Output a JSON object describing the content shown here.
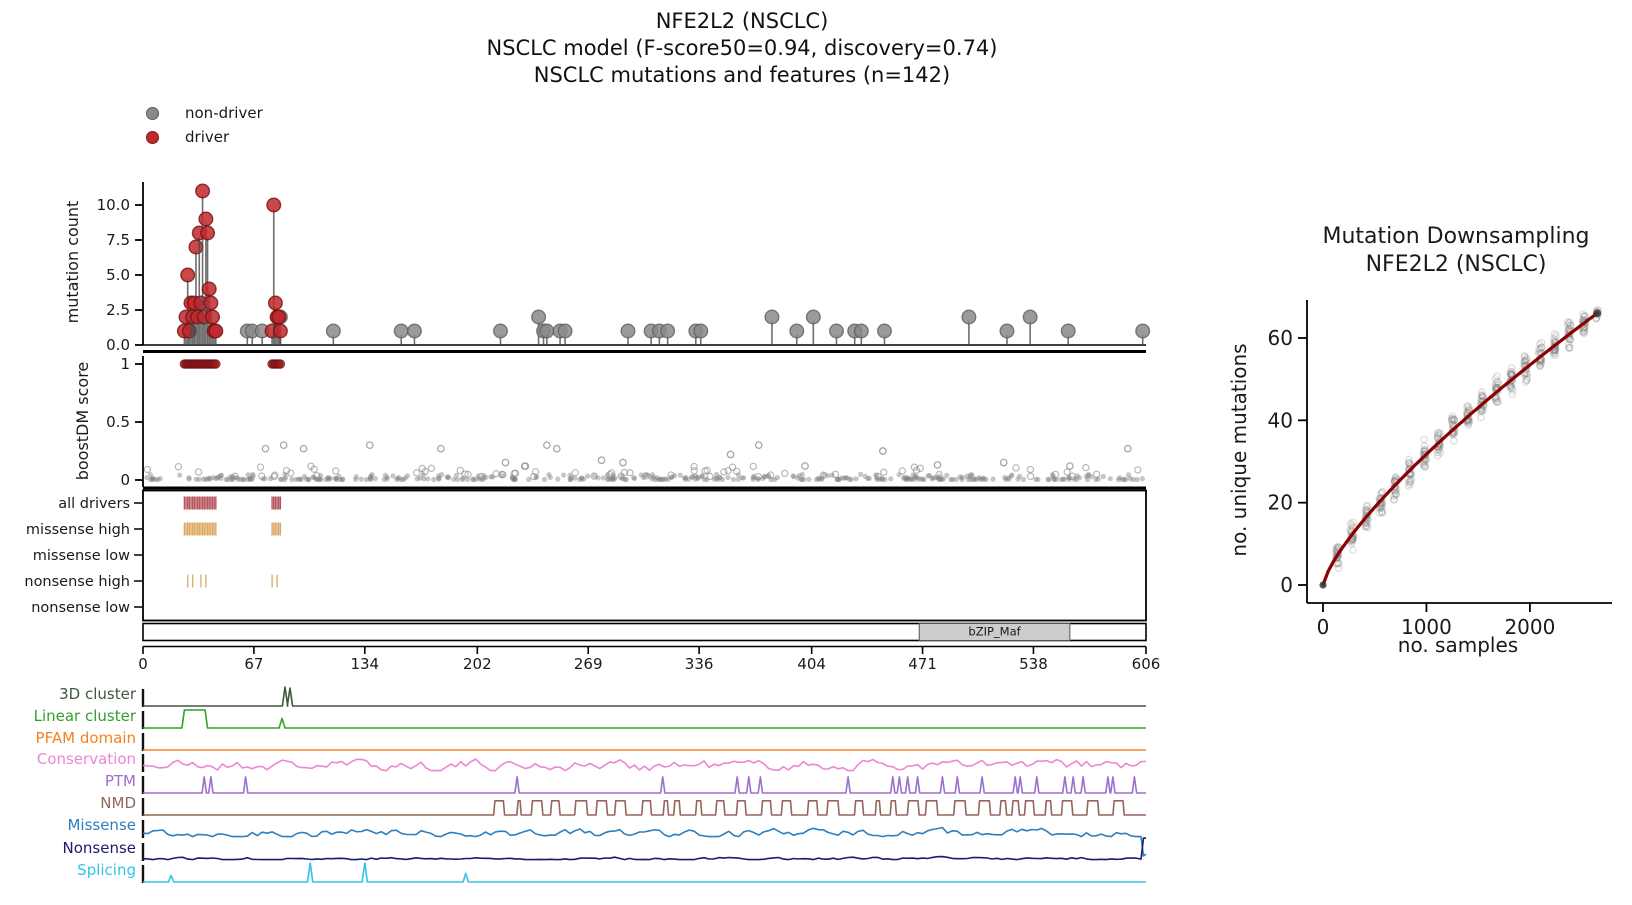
{
  "title": {
    "line1": "NFE2L2 (NSCLC)",
    "line2": "NSCLC model (F-score50=0.94, discovery=0.74)",
    "line3": "NSCLC mutations and features (n=142)"
  },
  "legend": {
    "items": [
      {
        "label": "non-driver",
        "color": "#8a8a8a"
      },
      {
        "label": "driver",
        "color": "#c1282d"
      }
    ]
  },
  "chart_data": [
    {
      "type": "scatter",
      "subtype": "lollipop",
      "ylabel": "mutation count",
      "yticks": [
        0.0,
        2.5,
        5.0,
        7.5,
        10.0
      ],
      "ytick_labels": [
        "0.0",
        "2.5",
        "5.0",
        "7.5",
        "10.0"
      ],
      "xlim": [
        0,
        606
      ],
      "ylim": [
        0,
        11.5
      ],
      "series": [
        {
          "name": "driver",
          "color": "#c1282d",
          "points": [
            [
              25,
              1
            ],
            [
              26,
              2
            ],
            [
              27,
              5
            ],
            [
              28,
              1
            ],
            [
              29,
              3
            ],
            [
              30,
              2
            ],
            [
              31,
              3
            ],
            [
              32,
              7
            ],
            [
              33,
              2
            ],
            [
              34,
              8
            ],
            [
              35,
              3
            ],
            [
              36,
              11
            ],
            [
              37,
              2
            ],
            [
              38,
              9
            ],
            [
              39,
              8
            ],
            [
              40,
              4
            ],
            [
              41,
              3
            ],
            [
              42,
              2
            ],
            [
              43,
              1
            ],
            [
              44,
              1
            ],
            [
              78,
              1
            ],
            [
              79,
              10
            ],
            [
              80,
              3
            ],
            [
              81,
              2
            ],
            [
              82,
              2
            ],
            [
              83,
              1
            ]
          ]
        },
        {
          "name": "non-driver",
          "color": "#8a8a8a",
          "points": [
            [
              63,
              1
            ],
            [
              66,
              1
            ],
            [
              72,
              1
            ],
            [
              83,
              2
            ],
            [
              115,
              1
            ],
            [
              156,
              1
            ],
            [
              164,
              1
            ],
            [
              216,
              1
            ],
            [
              239,
              2
            ],
            [
              242,
              1
            ],
            [
              244,
              1
            ],
            [
              252,
              1
            ],
            [
              255,
              1
            ],
            [
              293,
              1
            ],
            [
              307,
              1
            ],
            [
              312,
              1
            ],
            [
              317,
              1
            ],
            [
              334,
              1
            ],
            [
              337,
              1
            ],
            [
              380,
              2
            ],
            [
              395,
              1
            ],
            [
              405,
              2
            ],
            [
              419,
              1
            ],
            [
              430,
              1
            ],
            [
              434,
              1
            ],
            [
              448,
              1
            ],
            [
              499,
              2
            ],
            [
              522,
              1
            ],
            [
              536,
              2
            ],
            [
              559,
              1
            ],
            [
              604,
              1
            ]
          ]
        }
      ]
    },
    {
      "type": "scatter",
      "subtype": "boostdm-score",
      "ylabel": "boostDM score",
      "yticks": [
        0,
        0.5,
        1
      ],
      "ytick_labels": [
        "0",
        "0.5",
        "1"
      ],
      "xlim": [
        0,
        606
      ],
      "driver_score": 1,
      "driver_positions": [
        25,
        26,
        27,
        28,
        29,
        30,
        31,
        32,
        33,
        34,
        35,
        36,
        37,
        38,
        39,
        40,
        41,
        42,
        43,
        44,
        78,
        79,
        80,
        81,
        82,
        83
      ],
      "outliers": [
        [
          74,
          0.27
        ],
        [
          85,
          0.3
        ],
        [
          97,
          0.27
        ],
        [
          137,
          0.3
        ],
        [
          180,
          0.27
        ],
        [
          219,
          0.15
        ],
        [
          231,
          0.12
        ],
        [
          244,
          0.3
        ],
        [
          250,
          0.27
        ],
        [
          277,
          0.17
        ],
        [
          290,
          0.15
        ],
        [
          355,
          0.22
        ],
        [
          372,
          0.3
        ],
        [
          400,
          0.12
        ],
        [
          447,
          0.25
        ],
        [
          480,
          0.13
        ],
        [
          520,
          0.15
        ],
        [
          560,
          0.12
        ],
        [
          595,
          0.27
        ]
      ],
      "background_noise": {
        "n_dense": 380,
        "n_ring": 70,
        "y_max": 0.12,
        "seed": 7
      },
      "colors": {
        "driver": "#9b1a1a",
        "non_driver": "#808080"
      }
    },
    {
      "type": "tick-tracks",
      "subtype": "driver-classification",
      "xlim": [
        0,
        606
      ],
      "rows": [
        {
          "label": "all drivers",
          "color": "#b4535c",
          "positions": [
            25,
            26,
            27,
            28,
            29,
            30,
            31,
            32,
            33,
            34,
            35,
            36,
            37,
            38,
            39,
            40,
            41,
            42,
            43,
            44,
            78,
            79,
            80,
            81,
            82,
            83
          ]
        },
        {
          "label": "missense high",
          "color": "#ddaa66",
          "positions": [
            25,
            26,
            27,
            28,
            29,
            30,
            31,
            32,
            33,
            34,
            35,
            36,
            37,
            38,
            39,
            40,
            41,
            42,
            43,
            44,
            78,
            79,
            80,
            81,
            82,
            83
          ]
        },
        {
          "label": "missense low",
          "color": "#ddaa66",
          "positions": []
        },
        {
          "label": "nonsense high",
          "color": "#e0b070",
          "positions": [
            27,
            30,
            35,
            38,
            78,
            81
          ]
        },
        {
          "label": "nonsense low",
          "color": "#e0b070",
          "positions": []
        }
      ]
    },
    {
      "type": "domain-bar",
      "xlim": [
        0,
        606
      ],
      "xticks": [
        0,
        67,
        134,
        202,
        269,
        336,
        404,
        471,
        538,
        606
      ],
      "domains": [
        {
          "name": "bZIP_Maf",
          "start": 469,
          "end": 560,
          "fill": "#cccccc"
        }
      ]
    },
    {
      "type": "line",
      "subtype": "feature-tracks",
      "xlim": [
        0,
        606
      ],
      "rows": [
        {
          "label": "3D cluster",
          "color": "#41583f",
          "kind": "peaks",
          "peaks": [
            [
              85.8,
              1.0
            ],
            [
              88.8,
              0.95
            ]
          ]
        },
        {
          "label": "Linear cluster",
          "color": "#33a02c",
          "kind": "plateau",
          "plateaus": [
            [
              25,
              37.5,
              0.95
            ]
          ],
          "peaks": [
            [
              84,
              0.5
            ]
          ]
        },
        {
          "label": "PFAM domain",
          "color": "#f58220",
          "kind": "flat"
        },
        {
          "label": "Conservation",
          "color": "#ee85d5",
          "kind": "noise",
          "seed": 21,
          "base": 0.3,
          "amp": 0.55,
          "step": 3
        },
        {
          "label": "PTM",
          "color": "#9d6fce",
          "kind": "spikes",
          "height": 0.85,
          "positions": [
            37,
            41,
            62,
            226,
            314,
            359,
            366,
            373,
            426,
            453,
            457,
            462,
            468,
            483,
            492,
            507,
            527,
            530,
            540,
            557,
            562,
            568,
            583,
            586,
            599
          ]
        },
        {
          "label": "NMD",
          "color": "#96655c",
          "kind": "pulses",
          "start": 205,
          "end": 604,
          "height": 0.75,
          "seed": 33
        },
        {
          "label": "Missense",
          "color": "#2d7fbf",
          "kind": "noise",
          "seed": 55,
          "base": 0.2,
          "amp": 0.4,
          "step": 3,
          "end_dip": -1.0
        },
        {
          "label": "Nonsense",
          "color": "#1b1b6b",
          "kind": "noise",
          "seed": 77,
          "base": 0.07,
          "amp": 0.15,
          "step": 3,
          "end_spike": 1.15
        },
        {
          "label": "Splicing",
          "color": "#33c3ea",
          "kind": "spikes2",
          "spikes": [
            [
              17,
              0.35
            ],
            [
              101,
              1.0
            ],
            [
              134,
              1.0
            ],
            [
              195,
              0.45
            ]
          ]
        }
      ]
    },
    {
      "type": "scatter",
      "subtype": "downsampling",
      "title_line1": "Mutation Downsampling",
      "title_line2": "NFE2L2 (NSCLC)",
      "xlabel": "no. samples",
      "ylabel": "no. unique mutations",
      "xticks": [
        0,
        1000,
        2000
      ],
      "yticks": [
        0,
        20,
        40,
        60
      ],
      "xlim": [
        0,
        2750
      ],
      "ylim": [
        0,
        69
      ],
      "curve": {
        "color": "#8b0000",
        "x_max": 2650,
        "y_max": 66,
        "exponent": 0.75,
        "sampled_points": [
          [
            0,
            0
          ],
          [
            500,
            18.9
          ],
          [
            1000,
            31.7
          ],
          [
            1500,
            43.0
          ],
          [
            2000,
            53.4
          ],
          [
            2650,
            66
          ]
        ]
      },
      "clusters": {
        "step": 140,
        "count": 18,
        "points_per_cluster": 25,
        "jitter_sd": 2.6,
        "seed": 11
      },
      "endpoint": [
        2650,
        66
      ],
      "origin_point": [
        0,
        0
      ]
    }
  ],
  "colors": {
    "stem": "#4a4a4a",
    "axis": "#000000",
    "driver_red": "#c1282d",
    "driver_red_edge": "#701010",
    "gray_marker": "#8a8a8a",
    "gray_marker_edge": "#5f5f5f",
    "downsampling_curve": "#8b0000"
  }
}
